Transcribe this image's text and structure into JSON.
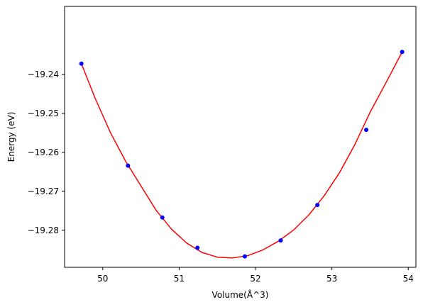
{
  "chart_data": {
    "type": "scatter",
    "title": "",
    "xlabel": "Volume(Å^3)",
    "ylabel": "Energy (eV)",
    "xlim": [
      49.5,
      54.1
    ],
    "ylim": [
      -19.2895,
      -19.2225
    ],
    "x_ticks": [
      50,
      51,
      52,
      53,
      54
    ],
    "y_ticks": [
      -19.24,
      -19.25,
      -19.26,
      -19.27,
      -19.28
    ],
    "x_tick_labels": [
      "50",
      "51",
      "52",
      "53",
      "54"
    ],
    "y_tick_labels": [
      "−19.24",
      "−19.25",
      "−19.26",
      "−19.27",
      "−19.28"
    ],
    "grid": false,
    "series": [
      {
        "kind": "points",
        "color": "#0000ff",
        "x": [
          49.72,
          50.33,
          50.78,
          51.24,
          51.86,
          52.33,
          52.81,
          53.45,
          53.92
        ],
        "y": [
          -19.2372,
          -19.2634,
          -19.2767,
          -19.2845,
          -19.2867,
          -19.2826,
          -19.2735,
          -19.2542,
          -19.2342
        ]
      },
      {
        "kind": "fit-curve",
        "color": "#ff0000",
        "x": [
          49.72,
          49.9,
          50.1,
          50.3,
          50.5,
          50.7,
          50.9,
          51.1,
          51.3,
          51.5,
          51.7,
          51.9,
          52.1,
          52.3,
          52.5,
          52.7,
          52.9,
          53.1,
          53.3,
          53.5,
          53.7,
          53.92
        ],
        "y": [
          -19.2372,
          -19.2461,
          -19.2549,
          -19.2623,
          -19.2686,
          -19.2749,
          -19.2797,
          -19.2833,
          -19.2857,
          -19.2869,
          -19.2871,
          -19.2865,
          -19.285,
          -19.2828,
          -19.2799,
          -19.276,
          -19.2711,
          -19.2652,
          -19.258,
          -19.2497,
          -19.2424,
          -19.2342
        ]
      }
    ]
  }
}
